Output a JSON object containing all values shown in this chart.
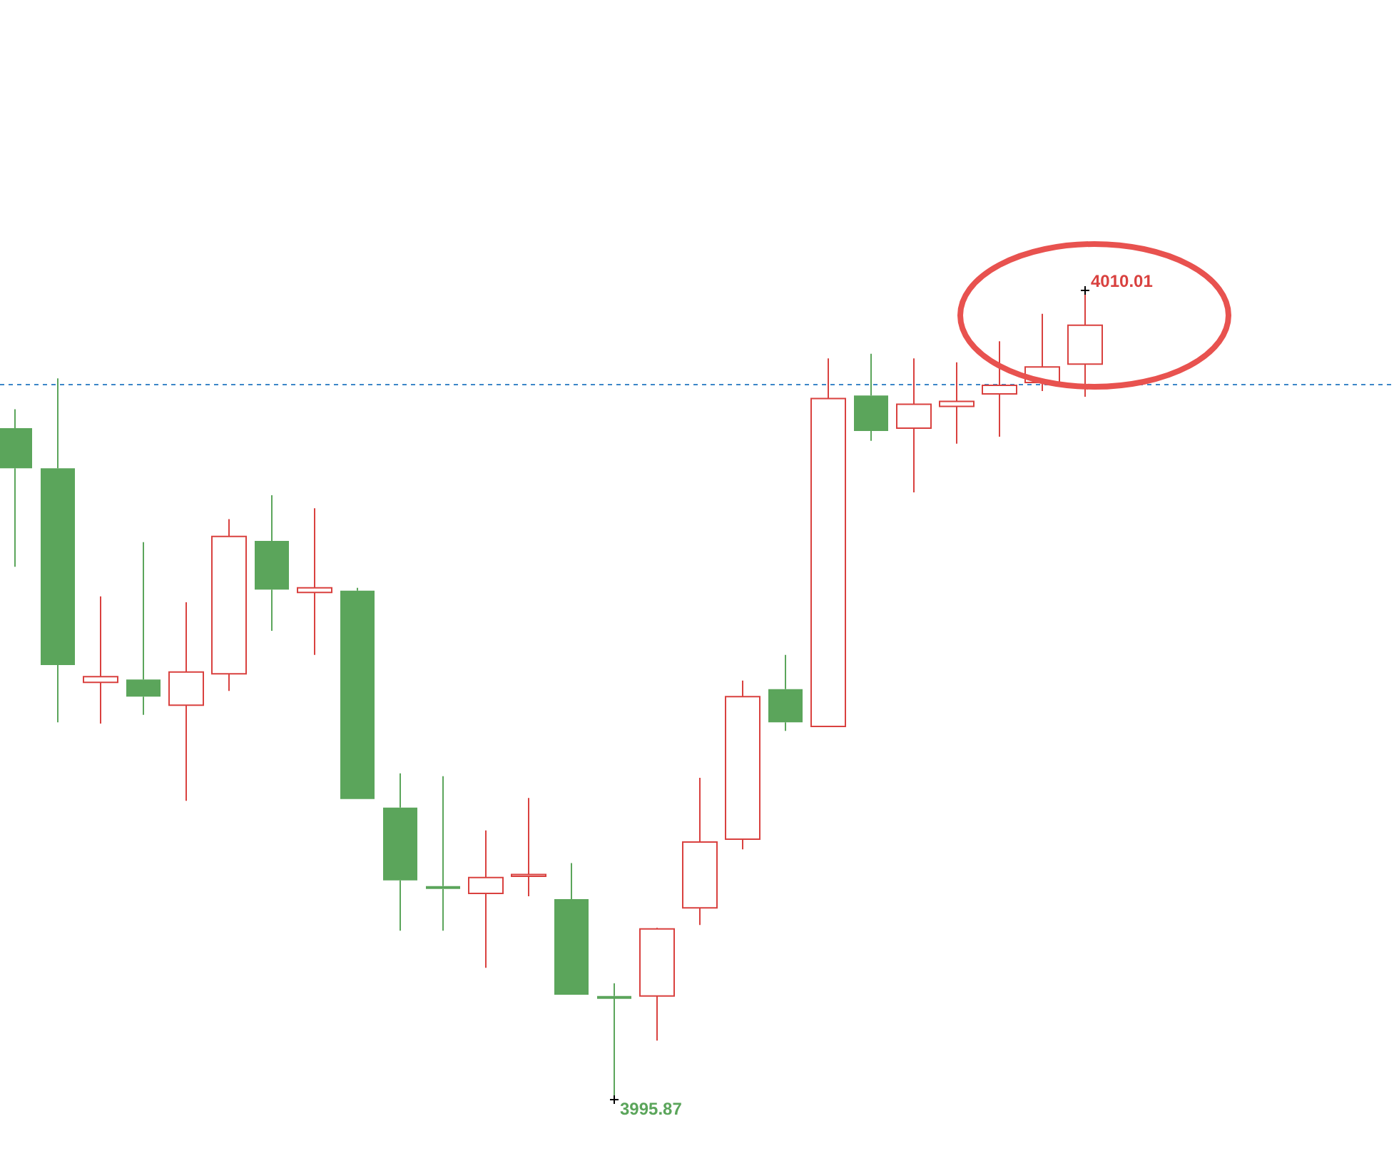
{
  "chart_data": {
    "type": "candlestick",
    "categories": [
      null,
      null,
      null,
      null,
      null,
      null,
      null,
      null,
      null,
      null,
      null,
      null,
      null,
      null,
      null,
      null,
      null,
      null,
      null,
      null,
      null,
      null,
      null,
      null,
      null,
      null
    ],
    "ohlc": [
      [
        4007.59,
        4007.92,
        4005.17,
        4006.89
      ],
      [
        4006.89,
        4008.46,
        4002.45,
        4003.45
      ],
      [
        4003.15,
        4004.65,
        4002.43,
        4003.25
      ],
      [
        4003.2,
        4005.6,
        4002.58,
        4002.9
      ],
      [
        4002.75,
        4004.55,
        4001.08,
        4003.33
      ],
      [
        4003.3,
        4006.0,
        4003.0,
        4005.7
      ],
      [
        4005.62,
        4006.42,
        4004.05,
        4004.77
      ],
      [
        4004.72,
        4006.19,
        4003.63,
        4004.8
      ],
      [
        4004.75,
        4004.8,
        4001.11,
        4001.11
      ],
      [
        4000.96,
        4001.56,
        3998.81,
        3999.69
      ],
      [
        3999.59,
        4001.51,
        3998.81,
        3999.54
      ],
      [
        3999.46,
        4000.56,
        3998.16,
        3999.74
      ],
      [
        3999.76,
        4001.13,
        3999.41,
        3999.79
      ],
      [
        3999.36,
        3999.99,
        3997.69,
        3997.69
      ],
      [
        3997.67,
        3997.89,
        3995.87,
        3997.64
      ],
      [
        3997.67,
        3998.86,
        3996.89,
        3998.84
      ],
      [
        3999.21,
        4001.48,
        3998.91,
        4000.36
      ],
      [
        4000.41,
        4003.18,
        4000.23,
        4002.9
      ],
      [
        4003.03,
        4003.63,
        4002.3,
        4002.45
      ],
      [
        4002.38,
        4008.81,
        4002.38,
        4008.11
      ],
      [
        4008.16,
        4008.89,
        4007.37,
        4007.54
      ],
      [
        4007.59,
        4008.81,
        4006.47,
        4008.01
      ],
      [
        4007.97,
        4008.74,
        4007.32,
        4008.06
      ],
      [
        4008.19,
        4009.11,
        4007.44,
        4008.34
      ],
      [
        4008.39,
        4009.59,
        4008.24,
        4008.66
      ],
      [
        4008.71,
        4010.01,
        4008.14,
        4009.39
      ]
    ],
    "colors": [
      "#5ba55b",
      "#5ba55b",
      "#d9413f",
      "#5ba55b",
      "#d9413f",
      "#d9413f",
      "#5ba55b",
      "#d9413f",
      "#5ba55b",
      "#5ba55b",
      "#5ba55b",
      "#d9413f",
      "#d9413f",
      "#5ba55b",
      "#5ba55b",
      "#d9413f",
      "#d9413f",
      "#d9413f",
      "#5ba55b",
      "#d9413f",
      "#5ba55b",
      "#d9413f",
      "#d9413f",
      "#d9413f",
      "#d9413f",
      "#d9413f"
    ],
    "ref_lines": [
      {
        "axis": "y",
        "value": 4008.36,
        "color": "#3c86c8",
        "line_style": "dashed"
      }
    ],
    "annotations": [
      "4010.01",
      "3995.87"
    ]
  }
}
